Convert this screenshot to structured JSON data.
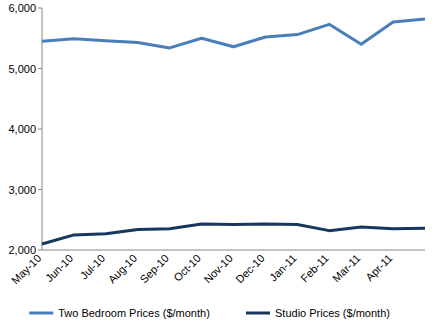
{
  "chart_data": {
    "type": "line",
    "categories": [
      "May-10",
      "Jun-10",
      "Jul-10",
      "Aug-10",
      "Sep-10",
      "Oct-10",
      "Nov-10",
      "Dec-10",
      "Jan-11",
      "Feb-11",
      "Mar-11",
      "Apr-11",
      null
    ],
    "series": [
      {
        "name": "Two Bedroom Prices ($/month)",
        "color": "#4a7ebb",
        "values": [
          5450,
          5490,
          5460,
          5430,
          5340,
          5500,
          5360,
          5520,
          5560,
          5730,
          5400,
          5770,
          5820
        ]
      },
      {
        "name": "Studio Prices ($/month)",
        "color": "#17375e",
        "values": [
          2100,
          2250,
          2270,
          2340,
          2350,
          2430,
          2420,
          2430,
          2420,
          2320,
          2380,
          2350,
          2360
        ]
      }
    ],
    "ylim": [
      2000,
      6000
    ],
    "yticks": [
      {
        "value": 2000,
        "label": "2,000"
      },
      {
        "value": 3000,
        "label": "3,000"
      },
      {
        "value": 4000,
        "label": "4,000"
      },
      {
        "value": 5000,
        "label": "5,000"
      },
      {
        "value": 6000,
        "label": "6,000"
      }
    ],
    "grid": false,
    "legend": "bottom"
  }
}
